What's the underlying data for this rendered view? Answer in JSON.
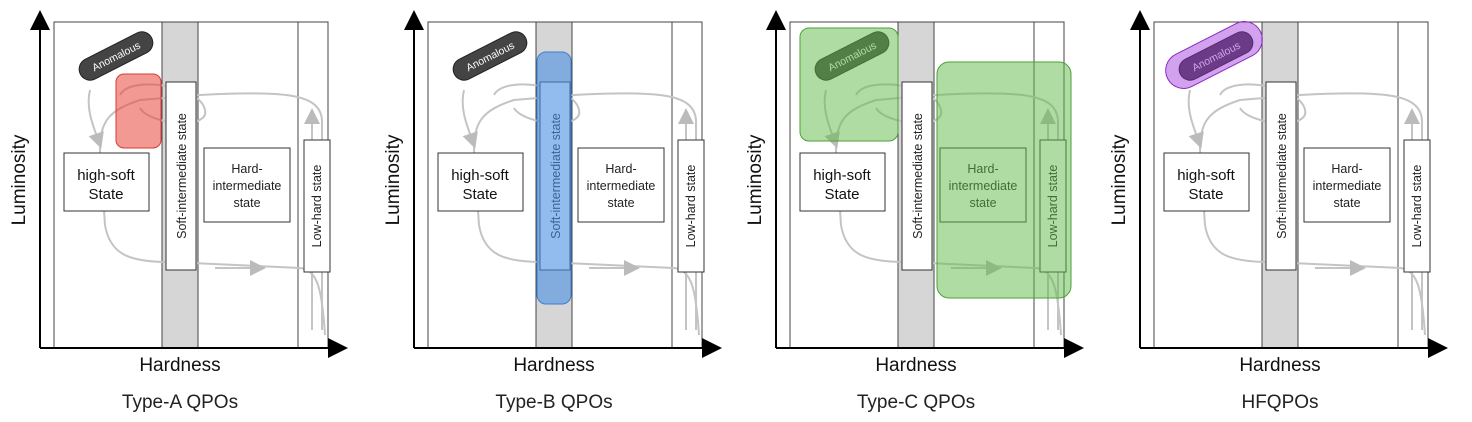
{
  "axes": {
    "y_label": "Luminosity",
    "x_label": "Hardness"
  },
  "states": {
    "anomalous": "Anomalous",
    "high_soft_line1": "high-soft",
    "high_soft_line2": "State",
    "soft_intermediate": "Soft-intermediate state",
    "hard_intermediate_line1": "Hard-",
    "hard_intermediate_line2": "intermediate",
    "hard_intermediate_line3": "state",
    "low_hard": "Low-hard state"
  },
  "panels": [
    {
      "caption": "Type-A QPOs",
      "highlight_color": "#e8453c",
      "highlighted_region": "upper soft-intermediate"
    },
    {
      "caption": "Type-B QPOs",
      "highlight_color": "#4a90e2",
      "highlighted_region": "soft-intermediate state"
    },
    {
      "caption": "Type-C QPOs",
      "highlight_color": "#5fba46",
      "highlighted_region": "anomalous, hard-intermediate, low-hard"
    },
    {
      "caption": "HFQPOs",
      "highlight_color": "#9b30d9",
      "highlighted_region": "anomalous"
    }
  ]
}
